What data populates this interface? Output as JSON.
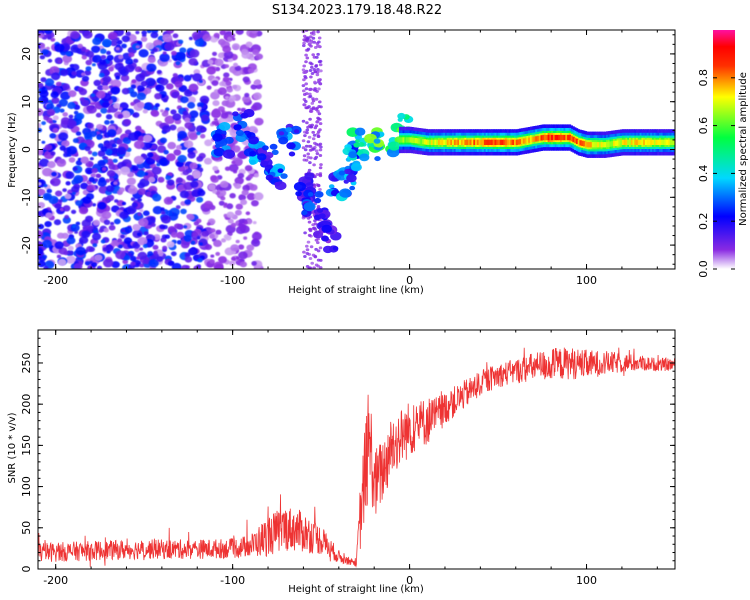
{
  "title": "S134.2023.179.18.48.R22",
  "chart_data": [
    {
      "type": "heatmap",
      "xlabel": "Height of straight line (km)",
      "ylabel": "Frequency (Hz)",
      "xlim": [
        -210,
        150
      ],
      "ylim": [
        -25,
        25
      ],
      "xticks": [
        -200,
        -100,
        0,
        100
      ],
      "yticks": [
        -20,
        -10,
        0,
        10,
        20
      ],
      "grid": false,
      "colorbar": {
        "label": "Normalized spectral amplitude",
        "range": [
          0,
          1
        ],
        "ticks": [
          0.0,
          0.2,
          0.4,
          0.6,
          0.8
        ],
        "colors": [
          "#ffffff",
          "#8a2be2",
          "#0000ff",
          "#00d8ff",
          "#00ff40",
          "#ffff00",
          "#ff6000",
          "#ff0000",
          "#ff10a0"
        ]
      },
      "features": {
        "noise_region_x": [
          -210,
          -105
        ],
        "noise_y_range": [
          -25,
          25
        ],
        "transition_points": [
          {
            "x": -105,
            "y": 2,
            "amp": 0.35
          },
          {
            "x": -95,
            "y": 5,
            "amp": 0.3
          },
          {
            "x": -88,
            "y": 0,
            "amp": 0.35
          },
          {
            "x": -80,
            "y": -2,
            "amp": 0.3
          },
          {
            "x": -75,
            "y": -5,
            "amp": 0.35
          },
          {
            "x": -68,
            "y": 2,
            "amp": 0.35
          },
          {
            "x": -60,
            "y": -8,
            "amp": 0.25
          },
          {
            "x": -55,
            "y": -12,
            "amp": 0.3
          },
          {
            "x": -50,
            "y": -15,
            "amp": 0.25
          },
          {
            "x": -46,
            "y": -18,
            "amp": 0.2
          },
          {
            "x": -40,
            "y": -7,
            "amp": 0.4
          },
          {
            "x": -35,
            "y": -7,
            "amp": 0.35
          },
          {
            "x": -32,
            "y": -1,
            "amp": 0.45
          },
          {
            "x": -28,
            "y": 1,
            "amp": 0.5
          },
          {
            "x": -18,
            "y": 1,
            "amp": 0.6
          },
          {
            "x": -8,
            "y": 2,
            "amp": 0.65
          },
          {
            "x": -2,
            "y": 4,
            "amp": 0.7
          }
        ],
        "ridge": {
          "x_start": 0,
          "x_end": 150,
          "y_center": [
            [
              0,
              2
            ],
            [
              10,
              1.5
            ],
            [
              20,
              1.5
            ],
            [
              40,
              1.5
            ],
            [
              60,
              1.5
            ],
            [
              75,
              2.5
            ],
            [
              90,
              2.5
            ],
            [
              95,
              1.5
            ],
            [
              100,
              1
            ],
            [
              110,
              1
            ],
            [
              120,
              1.5
            ],
            [
              150,
              1.5
            ]
          ],
          "amplitude": [
            [
              0,
              0.65
            ],
            [
              20,
              0.75
            ],
            [
              30,
              0.8
            ],
            [
              50,
              0.85
            ],
            [
              70,
              0.8
            ],
            [
              80,
              0.9
            ],
            [
              90,
              0.85
            ],
            [
              100,
              0.8
            ],
            [
              110,
              0.7
            ],
            [
              130,
              0.75
            ],
            [
              150,
              0.7
            ]
          ]
        }
      }
    },
    {
      "type": "line",
      "xlabel": "Height of straight line (km)",
      "ylabel": "SNR (10 * v/v)",
      "xlim": [
        -210,
        150
      ],
      "ylim": [
        0,
        290
      ],
      "xticks": [
        -200,
        -100,
        0,
        100
      ],
      "yticks": [
        0,
        50,
        100,
        150,
        200,
        250
      ],
      "grid": false,
      "color": "#ee3333",
      "series": [
        {
          "x": [
            -210,
            -180,
            -150,
            -120,
            -100,
            -90,
            -80,
            -70,
            -60,
            -50,
            -40,
            -35,
            -30,
            -28,
            -25,
            -22,
            -20,
            -15,
            -10,
            -5,
            0,
            5,
            10,
            15,
            20,
            30,
            40,
            50,
            60,
            70,
            80,
            90,
            100,
            110,
            120,
            130,
            140,
            150
          ],
          "y": [
            20,
            22,
            24,
            24,
            25,
            28,
            40,
            50,
            45,
            35,
            15,
            10,
            8,
            60,
            120,
            150,
            100,
            120,
            150,
            160,
            170,
            175,
            180,
            185,
            195,
            210,
            225,
            235,
            240,
            245,
            248,
            250,
            248,
            250,
            250,
            250,
            248,
            248
          ],
          "noise": [
            12,
            12,
            12,
            12,
            12,
            14,
            25,
            28,
            25,
            18,
            8,
            5,
            5,
            40,
            60,
            60,
            45,
            40,
            40,
            35,
            35,
            30,
            30,
            25,
            20,
            18,
            15,
            15,
            15,
            18,
            20,
            20,
            18,
            15,
            12,
            10,
            8,
            8
          ]
        }
      ]
    }
  ]
}
